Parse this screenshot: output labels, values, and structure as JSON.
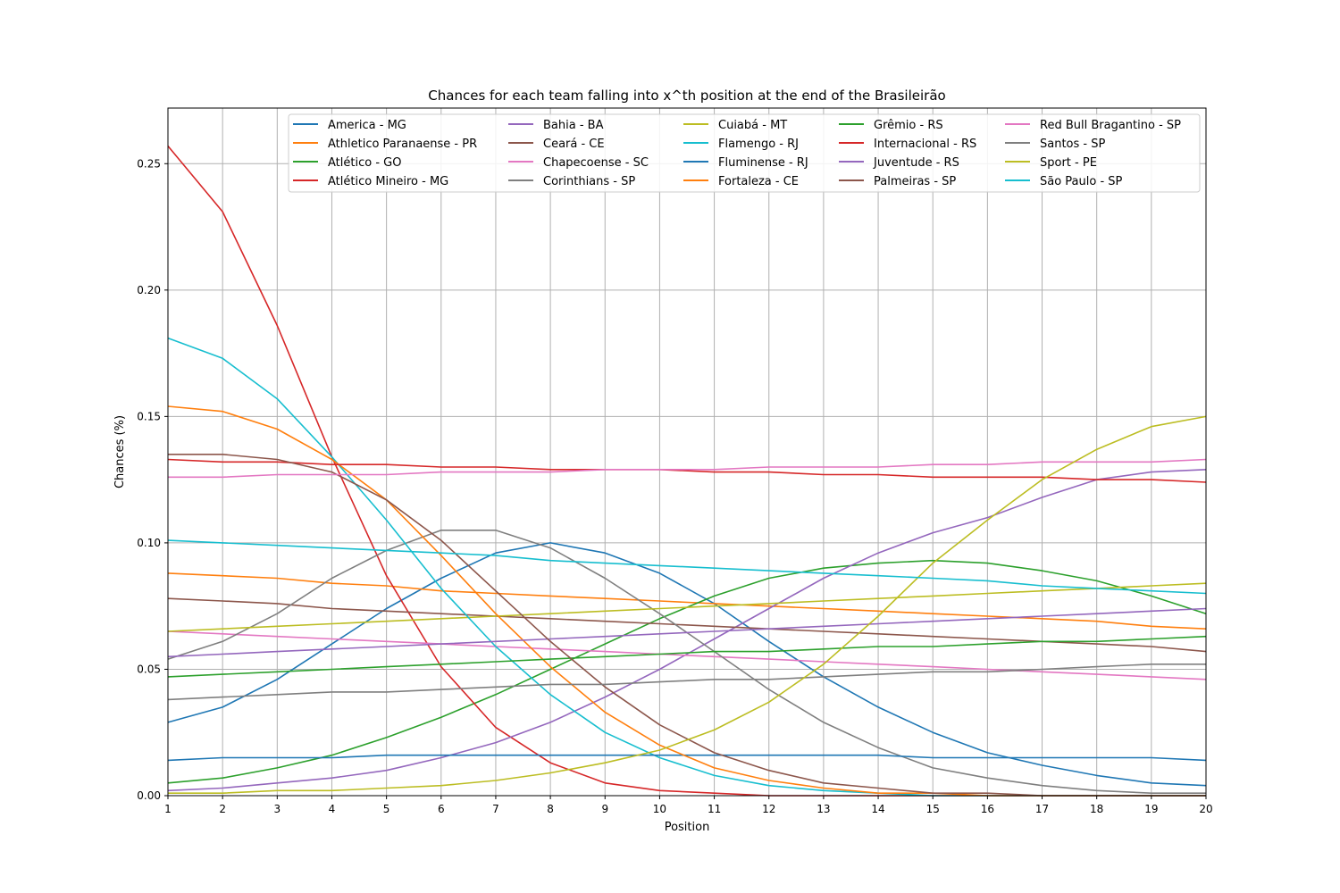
{
  "chart_data": {
    "type": "line",
    "title": "Chances for each team falling into x^th position at the end of the Brasileirão",
    "xlabel": "Position",
    "ylabel": "Chances (%)",
    "xlim": [
      1,
      20
    ],
    "ylim": [
      0,
      0.272
    ],
    "x": [
      1,
      2,
      3,
      4,
      5,
      6,
      7,
      8,
      9,
      10,
      11,
      12,
      13,
      14,
      15,
      16,
      17,
      18,
      19,
      20
    ],
    "xticks": [
      1,
      2,
      3,
      4,
      5,
      6,
      7,
      8,
      9,
      10,
      11,
      12,
      13,
      14,
      15,
      16,
      17,
      18,
      19,
      20
    ],
    "yticks": [
      0.0,
      0.05,
      0.1,
      0.15,
      0.2,
      0.25
    ],
    "ytick_labels": [
      "0.00",
      "0.05",
      "0.10",
      "0.15",
      "0.20",
      "0.25"
    ],
    "grid": true,
    "legend_position": "top-center",
    "legend_columns": 5,
    "series": [
      {
        "name": "America - MG",
        "color": "#1f77b4",
        "values": [
          0.029,
          0.035,
          0.046,
          0.06,
          0.074,
          0.086,
          0.096,
          0.1,
          0.096,
          0.088,
          0.076,
          0.061,
          0.047,
          0.035,
          0.025,
          0.017,
          0.012,
          0.008,
          0.005,
          0.004
        ]
      },
      {
        "name": "Athletico Paranaense - PR",
        "color": "#ff7f0e",
        "values": [
          0.088,
          0.087,
          0.086,
          0.084,
          0.083,
          0.081,
          0.08,
          0.079,
          0.078,
          0.077,
          0.076,
          0.075,
          0.074,
          0.073,
          0.072,
          0.071,
          0.07,
          0.069,
          0.067,
          0.066
        ]
      },
      {
        "name": "Atlético - GO",
        "color": "#2ca02c",
        "values": [
          0.005,
          0.007,
          0.011,
          0.016,
          0.023,
          0.031,
          0.04,
          0.05,
          0.06,
          0.07,
          0.079,
          0.086,
          0.09,
          0.092,
          0.093,
          0.092,
          0.089,
          0.085,
          0.079,
          0.072
        ]
      },
      {
        "name": "Atlético Mineiro - MG",
        "color": "#d62728",
        "values": [
          0.257,
          0.231,
          0.186,
          0.134,
          0.087,
          0.051,
          0.027,
          0.013,
          0.005,
          0.002,
          0.001,
          0.0,
          0.0,
          0.0,
          0.0,
          0.0,
          0.0,
          0.0,
          0.0,
          0.0
        ]
      },
      {
        "name": "Bahia - BA",
        "color": "#9467bd",
        "values": [
          0.002,
          0.003,
          0.005,
          0.007,
          0.01,
          0.015,
          0.021,
          0.029,
          0.039,
          0.05,
          0.062,
          0.074,
          0.086,
          0.096,
          0.104,
          0.11,
          0.118,
          0.125,
          0.128,
          0.129
        ]
      },
      {
        "name": "Ceará - CE",
        "color": "#8c564b",
        "values": [
          0.078,
          0.077,
          0.076,
          0.074,
          0.073,
          0.072,
          0.071,
          0.07,
          0.069,
          0.068,
          0.067,
          0.066,
          0.065,
          0.064,
          0.063,
          0.062,
          0.061,
          0.06,
          0.059,
          0.057
        ]
      },
      {
        "name": "Chapecoense - SC",
        "color": "#e377c2",
        "values": [
          0.065,
          0.064,
          0.063,
          0.062,
          0.061,
          0.06,
          0.059,
          0.058,
          0.057,
          0.056,
          0.055,
          0.054,
          0.053,
          0.052,
          0.051,
          0.05,
          0.049,
          0.048,
          0.047,
          0.046
        ]
      },
      {
        "name": "Corinthians - SP",
        "color": "#7f7f7f",
        "values": [
          0.054,
          0.061,
          0.072,
          0.086,
          0.097,
          0.105,
          0.105,
          0.098,
          0.086,
          0.072,
          0.057,
          0.042,
          0.029,
          0.019,
          0.011,
          0.007,
          0.004,
          0.002,
          0.001,
          0.001
        ]
      },
      {
        "name": "Cuiabá - MT",
        "color": "#bcbd22",
        "values": [
          0.065,
          0.066,
          0.067,
          0.068,
          0.069,
          0.07,
          0.071,
          0.072,
          0.073,
          0.074,
          0.075,
          0.076,
          0.077,
          0.078,
          0.079,
          0.08,
          0.081,
          0.082,
          0.083,
          0.084
        ]
      },
      {
        "name": "Flamengo - RJ",
        "color": "#17becf",
        "values": [
          0.181,
          0.173,
          0.157,
          0.134,
          0.109,
          0.082,
          0.059,
          0.04,
          0.025,
          0.015,
          0.008,
          0.004,
          0.002,
          0.001,
          0.0,
          0.0,
          0.0,
          0.0,
          0.0,
          0.0
        ]
      },
      {
        "name": "Fluminense - RJ",
        "color": "#1f77b4",
        "values": [
          0.014,
          0.015,
          0.015,
          0.015,
          0.016,
          0.016,
          0.016,
          0.016,
          0.016,
          0.016,
          0.016,
          0.016,
          0.016,
          0.016,
          0.015,
          0.015,
          0.015,
          0.015,
          0.015,
          0.014
        ]
      },
      {
        "name": "Fortaleza - CE",
        "color": "#ff7f0e",
        "values": [
          0.154,
          0.152,
          0.145,
          0.133,
          0.117,
          0.095,
          0.072,
          0.051,
          0.033,
          0.02,
          0.011,
          0.006,
          0.003,
          0.001,
          0.001,
          0.0,
          0.0,
          0.0,
          0.0,
          0.0
        ]
      },
      {
        "name": "Grêmio - RS",
        "color": "#2ca02c",
        "values": [
          0.047,
          0.048,
          0.049,
          0.05,
          0.051,
          0.052,
          0.053,
          0.054,
          0.055,
          0.056,
          0.057,
          0.057,
          0.058,
          0.059,
          0.059,
          0.06,
          0.061,
          0.061,
          0.062,
          0.063
        ]
      },
      {
        "name": "Internacional - RS",
        "color": "#d62728",
        "values": [
          0.133,
          0.132,
          0.132,
          0.131,
          0.131,
          0.13,
          0.13,
          0.129,
          0.129,
          0.129,
          0.128,
          0.128,
          0.127,
          0.127,
          0.126,
          0.126,
          0.126,
          0.125,
          0.125,
          0.124
        ]
      },
      {
        "name": "Juventude - RS",
        "color": "#9467bd",
        "values": [
          0.055,
          0.056,
          0.057,
          0.058,
          0.059,
          0.06,
          0.061,
          0.062,
          0.063,
          0.064,
          0.065,
          0.066,
          0.067,
          0.068,
          0.069,
          0.07,
          0.071,
          0.072,
          0.073,
          0.074
        ]
      },
      {
        "name": "Palmeiras - SP",
        "color": "#8c564b",
        "values": [
          0.135,
          0.135,
          0.133,
          0.128,
          0.117,
          0.101,
          0.081,
          0.061,
          0.043,
          0.028,
          0.017,
          0.01,
          0.005,
          0.003,
          0.001,
          0.001,
          0.0,
          0.0,
          0.0,
          0.0
        ]
      },
      {
        "name": "Red Bull Bragantino - SP",
        "color": "#e377c2",
        "values": [
          0.126,
          0.126,
          0.127,
          0.127,
          0.127,
          0.128,
          0.128,
          0.128,
          0.129,
          0.129,
          0.129,
          0.13,
          0.13,
          0.13,
          0.131,
          0.131,
          0.132,
          0.132,
          0.132,
          0.133
        ]
      },
      {
        "name": "Santos - SP",
        "color": "#7f7f7f",
        "values": [
          0.038,
          0.039,
          0.04,
          0.041,
          0.041,
          0.042,
          0.043,
          0.044,
          0.044,
          0.045,
          0.046,
          0.046,
          0.047,
          0.048,
          0.049,
          0.049,
          0.05,
          0.051,
          0.052,
          0.052
        ]
      },
      {
        "name": "Sport - PE",
        "color": "#bcbd22",
        "values": [
          0.001,
          0.001,
          0.002,
          0.002,
          0.003,
          0.004,
          0.006,
          0.009,
          0.013,
          0.018,
          0.026,
          0.037,
          0.052,
          0.071,
          0.092,
          0.109,
          0.125,
          0.137,
          0.146,
          0.15
        ]
      },
      {
        "name": "São Paulo - SP",
        "color": "#17becf",
        "values": [
          0.101,
          0.1,
          0.099,
          0.098,
          0.097,
          0.096,
          0.095,
          0.093,
          0.092,
          0.091,
          0.09,
          0.089,
          0.088,
          0.087,
          0.086,
          0.085,
          0.083,
          0.082,
          0.081,
          0.08
        ]
      }
    ]
  }
}
